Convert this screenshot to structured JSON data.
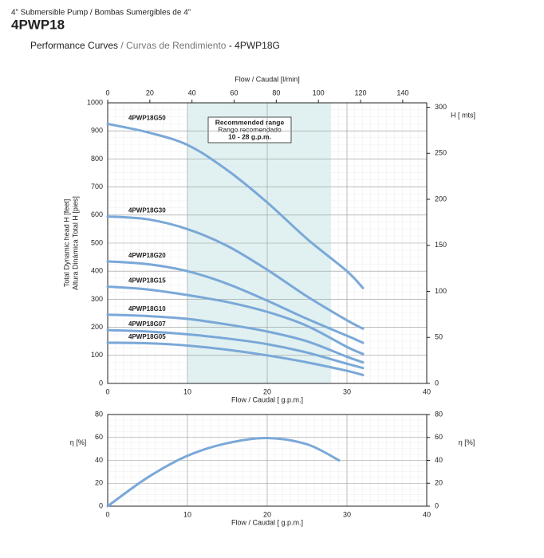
{
  "header": {
    "subtitle": "4” Submersible Pump / Bombas Sumergibles de 4”",
    "title": "4PWP18",
    "caption": [
      "Performance Curves",
      "/ Curvas de Rendimiento",
      "- 4PWP18G"
    ]
  },
  "chart_data": [
    {
      "type": "line",
      "xlabel": "Flow / Caudal [ g.p.m.]",
      "x2label": "Flow / Caudal [l/min]",
      "ylabel": [
        "Total Dynamic head H [feet]",
        "Altura Dinámica Total H [pies]"
      ],
      "y2label": "H [ mts]",
      "x": [
        0,
        5,
        10,
        15,
        20,
        25,
        30,
        32
      ],
      "xlim": [
        0,
        40
      ],
      "xticks": [
        0,
        10,
        20,
        30,
        40
      ],
      "x2lim": [
        0,
        151.4
      ],
      "x2ticks": [
        0,
        20,
        40,
        60,
        80,
        100,
        120,
        140
      ],
      "ylim": [
        0,
        1000
      ],
      "yticks": [
        0,
        100,
        200,
        300,
        400,
        500,
        600,
        700,
        800,
        900,
        1000
      ],
      "y2lim": [
        0,
        304.8
      ],
      "y2ticks": [
        0,
        50,
        100,
        150,
        200,
        250,
        300
      ],
      "grid": true,
      "highlight": {
        "x": [
          10,
          28
        ],
        "color": "#dcefef",
        "label": [
          "Recommended range",
          "Rango recomendado",
          "10 - 28 g.p.m."
        ]
      },
      "series": [
        {
          "name": "4PWP18G50",
          "color": "#7aa8d8",
          "values": [
            925,
            895,
            850,
            760,
            645,
            515,
            400,
            340
          ]
        },
        {
          "name": "4PWP18G30",
          "color": "#7aa8d8",
          "values": [
            595,
            585,
            550,
            490,
            405,
            310,
            225,
            195
          ]
        },
        {
          "name": "4PWP18G20",
          "color": "#7aa8d8",
          "values": [
            435,
            425,
            400,
            355,
            295,
            230,
            170,
            145
          ]
        },
        {
          "name": "4PWP18G15",
          "color": "#7aa8d8",
          "values": [
            345,
            335,
            315,
            290,
            255,
            205,
            130,
            105
          ]
        },
        {
          "name": "4PWP18G10",
          "color": "#7aa8d8",
          "values": [
            245,
            240,
            230,
            210,
            185,
            150,
            95,
            75
          ]
        },
        {
          "name": "4PWP18G07",
          "color": "#7aa8d8",
          "values": [
            190,
            185,
            175,
            160,
            140,
            110,
            70,
            55
          ]
        },
        {
          "name": "4PWP18G05",
          "color": "#7aa8d8",
          "values": [
            145,
            143,
            135,
            120,
            100,
            75,
            45,
            30
          ]
        }
      ]
    },
    {
      "type": "line",
      "xlabel": "Flow / Caudal [ g.p.m.]",
      "ylabel": "η [%]",
      "y2label": "η [%]",
      "x": [
        0,
        5,
        10,
        15,
        20,
        25,
        29
      ],
      "xlim": [
        0,
        40
      ],
      "xticks": [
        0,
        10,
        20,
        30,
        40
      ],
      "ylim": [
        0,
        80
      ],
      "yticks": [
        0,
        20,
        40,
        60,
        80
      ],
      "y2lim": [
        0,
        80
      ],
      "y2ticks": [
        0,
        20,
        40,
        60,
        80
      ],
      "grid": true,
      "series": [
        {
          "color": "#7aa8d8",
          "values": [
            0,
            25,
            44,
            55,
            59.5,
            54,
            40
          ]
        }
      ]
    }
  ]
}
